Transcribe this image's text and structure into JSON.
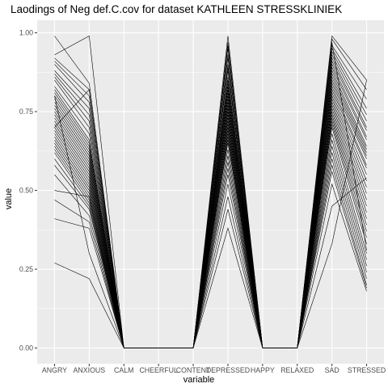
{
  "chart_data": {
    "type": "line",
    "title": "Laodings of Neg def.C.cov for dataset KATHLEEN STRESSKLINIEK",
    "xlabel": "variable",
    "ylabel": "value",
    "categories": [
      "ANGRY",
      "ANXIOUS",
      "CALM",
      "CHEERFUL",
      "CONTENT",
      "DEPRESSED",
      "HAPPY",
      "RELAXED",
      "SAD",
      "STRESSED"
    ],
    "ylim": [
      -0.05,
      1.04
    ],
    "yticks": [
      0.0,
      0.25,
      0.5,
      0.75,
      1.0
    ],
    "ytick_labels": [
      "0.00",
      "0.25",
      "0.50",
      "0.75",
      "1.00"
    ],
    "grid": true,
    "background": "#ebebeb",
    "line_color": "#000000",
    "series": [
      {
        "values": [
          0.99,
          0.84,
          0.0,
          0.0,
          0.0,
          0.99,
          0.0,
          0.0,
          0.99,
          0.85
        ]
      },
      {
        "values": [
          0.93,
          0.99,
          0.0,
          0.0,
          0.0,
          0.97,
          0.0,
          0.0,
          0.98,
          0.82
        ]
      },
      {
        "values": [
          0.92,
          0.82,
          0.0,
          0.0,
          0.0,
          0.95,
          0.0,
          0.0,
          0.96,
          0.79
        ]
      },
      {
        "values": [
          0.91,
          0.8,
          0.0,
          0.0,
          0.0,
          0.93,
          0.0,
          0.0,
          0.95,
          0.76
        ]
      },
      {
        "values": [
          0.9,
          0.78,
          0.0,
          0.0,
          0.0,
          0.92,
          0.0,
          0.0,
          0.94,
          0.74
        ]
      },
      {
        "values": [
          0.88,
          0.76,
          0.0,
          0.0,
          0.0,
          0.9,
          0.0,
          0.0,
          0.93,
          0.72
        ]
      },
      {
        "values": [
          0.87,
          0.74,
          0.0,
          0.0,
          0.0,
          0.89,
          0.0,
          0.0,
          0.92,
          0.7
        ]
      },
      {
        "values": [
          0.86,
          0.72,
          0.0,
          0.0,
          0.0,
          0.88,
          0.0,
          0.0,
          0.91,
          0.69
        ]
      },
      {
        "values": [
          0.85,
          0.7,
          0.0,
          0.0,
          0.0,
          0.86,
          0.0,
          0.0,
          0.9,
          0.67
        ]
      },
      {
        "values": [
          0.83,
          0.68,
          0.0,
          0.0,
          0.0,
          0.85,
          0.0,
          0.0,
          0.89,
          0.66
        ]
      },
      {
        "values": [
          0.82,
          0.66,
          0.0,
          0.0,
          0.0,
          0.84,
          0.0,
          0.0,
          0.88,
          0.64
        ]
      },
      {
        "values": [
          0.81,
          0.65,
          0.0,
          0.0,
          0.0,
          0.83,
          0.0,
          0.0,
          0.87,
          0.63
        ]
      },
      {
        "values": [
          0.8,
          0.64,
          0.0,
          0.0,
          0.0,
          0.82,
          0.0,
          0.0,
          0.86,
          0.62
        ]
      },
      {
        "values": [
          0.79,
          0.63,
          0.0,
          0.0,
          0.0,
          0.81,
          0.0,
          0.0,
          0.85,
          0.61
        ]
      },
      {
        "values": [
          0.78,
          0.62,
          0.0,
          0.0,
          0.0,
          0.8,
          0.0,
          0.0,
          0.84,
          0.6
        ]
      },
      {
        "values": [
          0.77,
          0.61,
          0.0,
          0.0,
          0.0,
          0.79,
          0.0,
          0.0,
          0.83,
          0.58
        ]
      },
      {
        "values": [
          0.76,
          0.6,
          0.0,
          0.0,
          0.0,
          0.78,
          0.0,
          0.0,
          0.82,
          0.57
        ]
      },
      {
        "values": [
          0.75,
          0.59,
          0.0,
          0.0,
          0.0,
          0.77,
          0.0,
          0.0,
          0.81,
          0.55
        ]
      },
      {
        "values": [
          0.74,
          0.58,
          0.0,
          0.0,
          0.0,
          0.76,
          0.0,
          0.0,
          0.8,
          0.53
        ]
      },
      {
        "values": [
          0.73,
          0.57,
          0.0,
          0.0,
          0.0,
          0.75,
          0.0,
          0.0,
          0.79,
          0.51
        ]
      },
      {
        "values": [
          0.72,
          0.56,
          0.0,
          0.0,
          0.0,
          0.74,
          0.0,
          0.0,
          0.78,
          0.49
        ]
      },
      {
        "values": [
          0.71,
          0.55,
          0.0,
          0.0,
          0.0,
          0.73,
          0.0,
          0.0,
          0.77,
          0.47
        ]
      },
      {
        "values": [
          0.7,
          0.54,
          0.0,
          0.0,
          0.0,
          0.72,
          0.0,
          0.0,
          0.76,
          0.45
        ]
      },
      {
        "values": [
          0.69,
          0.53,
          0.0,
          0.0,
          0.0,
          0.71,
          0.0,
          0.0,
          0.75,
          0.43
        ]
      },
      {
        "values": [
          0.68,
          0.52,
          0.0,
          0.0,
          0.0,
          0.7,
          0.0,
          0.0,
          0.74,
          0.41
        ]
      },
      {
        "values": [
          0.67,
          0.51,
          0.0,
          0.0,
          0.0,
          0.69,
          0.0,
          0.0,
          0.73,
          0.39
        ]
      },
      {
        "values": [
          0.66,
          0.5,
          0.0,
          0.0,
          0.0,
          0.68,
          0.0,
          0.0,
          0.72,
          0.37
        ]
      },
      {
        "values": [
          0.65,
          0.49,
          0.0,
          0.0,
          0.0,
          0.67,
          0.0,
          0.0,
          0.71,
          0.35
        ]
      },
      {
        "values": [
          0.64,
          0.48,
          0.0,
          0.0,
          0.0,
          0.66,
          0.0,
          0.0,
          0.7,
          0.33
        ]
      },
      {
        "values": [
          0.63,
          0.47,
          0.0,
          0.0,
          0.0,
          0.65,
          0.0,
          0.0,
          0.68,
          0.3
        ]
      },
      {
        "values": [
          0.62,
          0.46,
          0.0,
          0.0,
          0.0,
          0.63,
          0.0,
          0.0,
          0.66,
          0.28
        ]
      },
      {
        "values": [
          0.6,
          0.45,
          0.0,
          0.0,
          0.0,
          0.61,
          0.0,
          0.0,
          0.64,
          0.26
        ]
      },
      {
        "values": [
          0.58,
          0.44,
          0.0,
          0.0,
          0.0,
          0.59,
          0.0,
          0.0,
          0.62,
          0.24
        ]
      },
      {
        "values": [
          0.55,
          0.42,
          0.0,
          0.0,
          0.0,
          0.57,
          0.0,
          0.0,
          0.6,
          0.22
        ]
      },
      {
        "values": [
          0.5,
          0.48,
          0.0,
          0.0,
          0.0,
          0.55,
          0.0,
          0.0,
          0.58,
          0.2
        ]
      },
      {
        "values": [
          0.47,
          0.4,
          0.0,
          0.0,
          0.0,
          0.52,
          0.0,
          0.0,
          0.56,
          0.19
        ]
      },
      {
        "values": [
          0.41,
          0.38,
          0.0,
          0.0,
          0.0,
          0.48,
          0.0,
          0.0,
          0.52,
          0.18
        ]
      },
      {
        "values": [
          0.27,
          0.22,
          0.0,
          0.0,
          0.0,
          0.38,
          0.0,
          0.0,
          0.33,
          0.85
        ]
      },
      {
        "values": [
          0.8,
          0.3,
          0.0,
          0.0,
          0.0,
          0.44,
          0.0,
          0.0,
          0.45,
          0.54
        ]
      },
      {
        "values": [
          0.7,
          0.82,
          0.0,
          0.0,
          0.0,
          0.96,
          0.0,
          0.0,
          0.97,
          0.31
        ]
      }
    ]
  }
}
